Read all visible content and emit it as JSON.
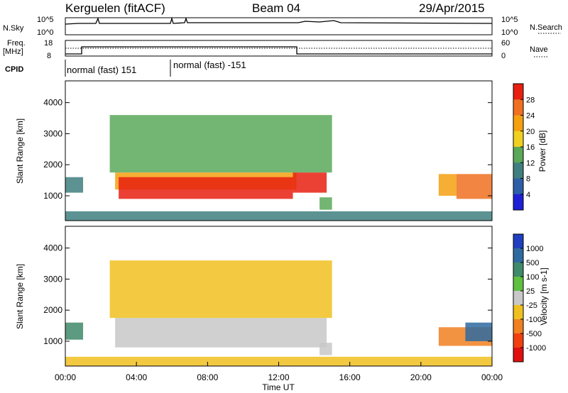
{
  "header": {
    "station": "Kerguelen (fitACF)",
    "beam": "Beam 04",
    "date": "29/Apr/2015"
  },
  "top_panels": {
    "nsky_label": "N.Sky",
    "nsky_ticks": [
      "10^5",
      "10^0"
    ],
    "nsearch_label": "N.Search",
    "nsearch_ticks": [
      "10^5",
      "10^0"
    ],
    "freq_label": "Freq.",
    "freq_unit": "[MHz]",
    "freq_ticks": [
      "18",
      "8"
    ],
    "nave_label": "Nave",
    "nave_ticks": [
      "60",
      "0"
    ],
    "cpid_label": "CPID",
    "cpid_segments": [
      "normal (fast) 151",
      "normal (fast) -151"
    ]
  },
  "chart_data": [
    {
      "type": "heatmap",
      "title": "",
      "xlabel": "",
      "ylabel": "Slant Range [km]",
      "y_ticks": [
        "1000",
        "2000",
        "3000",
        "4000"
      ],
      "ylim": [
        200,
        4700
      ],
      "colorbar": {
        "label": "Power [dB]",
        "ticks": [
          "4",
          "8",
          "12",
          "16",
          "20",
          "24",
          "28"
        ],
        "colors": [
          "#1f1fd6",
          "#2d5fa8",
          "#3f7f7f",
          "#5aa85a",
          "#f0d020",
          "#f5a010",
          "#f07020",
          "#e82010"
        ]
      },
      "regions": [
        {
          "x": [
            0.0,
            1.0
          ],
          "y": [
            1100,
            1600
          ],
          "value": 10
        },
        {
          "x": [
            0.0,
            24.0
          ],
          "y": [
            200,
            500
          ],
          "value": 8
        },
        {
          "x": [
            2.8,
            13.0
          ],
          "y": [
            1200,
            1750
          ],
          "value": 22
        },
        {
          "x": [
            3.0,
            12.8
          ],
          "y": [
            900,
            1600
          ],
          "value": 28
        },
        {
          "x": [
            12.8,
            14.7
          ],
          "y": [
            1100,
            1750
          ],
          "value": 28
        },
        {
          "x": [
            14.3,
            15.0
          ],
          "y": [
            550,
            950
          ],
          "value": 12
        },
        {
          "x": [
            2.5,
            15.0
          ],
          "y": [
            1750,
            3600
          ],
          "value": 14
        },
        {
          "x": [
            21.0,
            22.0
          ],
          "y": [
            1000,
            1700
          ],
          "value": 20
        },
        {
          "x": [
            22.0,
            24.0
          ],
          "y": [
            900,
            1700
          ],
          "value": 26
        }
      ]
    },
    {
      "type": "heatmap",
      "title": "",
      "xlabel": "Time UT",
      "ylabel": "Slant Range [km]",
      "x_ticks": [
        "00:00",
        "04:00",
        "08:00",
        "12:00",
        "16:00",
        "20:00",
        "00:00"
      ],
      "xlim": [
        0,
        24
      ],
      "y_ticks": [
        "1000",
        "2000",
        "3000",
        "4000"
      ],
      "ylim": [
        200,
        4700
      ],
      "colorbar": {
        "label": "Velocity [m s-1]",
        "ticks": [
          "1000",
          "500",
          "100",
          "25",
          "-25",
          "-100",
          "-500",
          "-1000"
        ],
        "colors": [
          "#1f3fc0",
          "#2e6aa0",
          "#3f8a6a",
          "#5fc040",
          "#c8c8c8",
          "#f0c020",
          "#f08020",
          "#f04010",
          "#e01010"
        ]
      },
      "regions": [
        {
          "x": [
            0.0,
            1.0
          ],
          "y": [
            1050,
            1600
          ],
          "value": 100
        },
        {
          "x": [
            0.0,
            24.0
          ],
          "y": [
            200,
            500
          ],
          "value": -100
        },
        {
          "x": [
            2.8,
            14.7
          ],
          "y": [
            800,
            1750
          ],
          "value": 0
        },
        {
          "x": [
            14.3,
            15.0
          ],
          "y": [
            550,
            950
          ],
          "value": 0
        },
        {
          "x": [
            2.5,
            15.0
          ],
          "y": [
            1750,
            3600
          ],
          "value": -100
        },
        {
          "x": [
            21.0,
            24.0
          ],
          "y": [
            850,
            1450
          ],
          "value": -300
        },
        {
          "x": [
            22.5,
            24.0
          ],
          "y": [
            1000,
            1600
          ],
          "value": 600
        }
      ]
    }
  ]
}
